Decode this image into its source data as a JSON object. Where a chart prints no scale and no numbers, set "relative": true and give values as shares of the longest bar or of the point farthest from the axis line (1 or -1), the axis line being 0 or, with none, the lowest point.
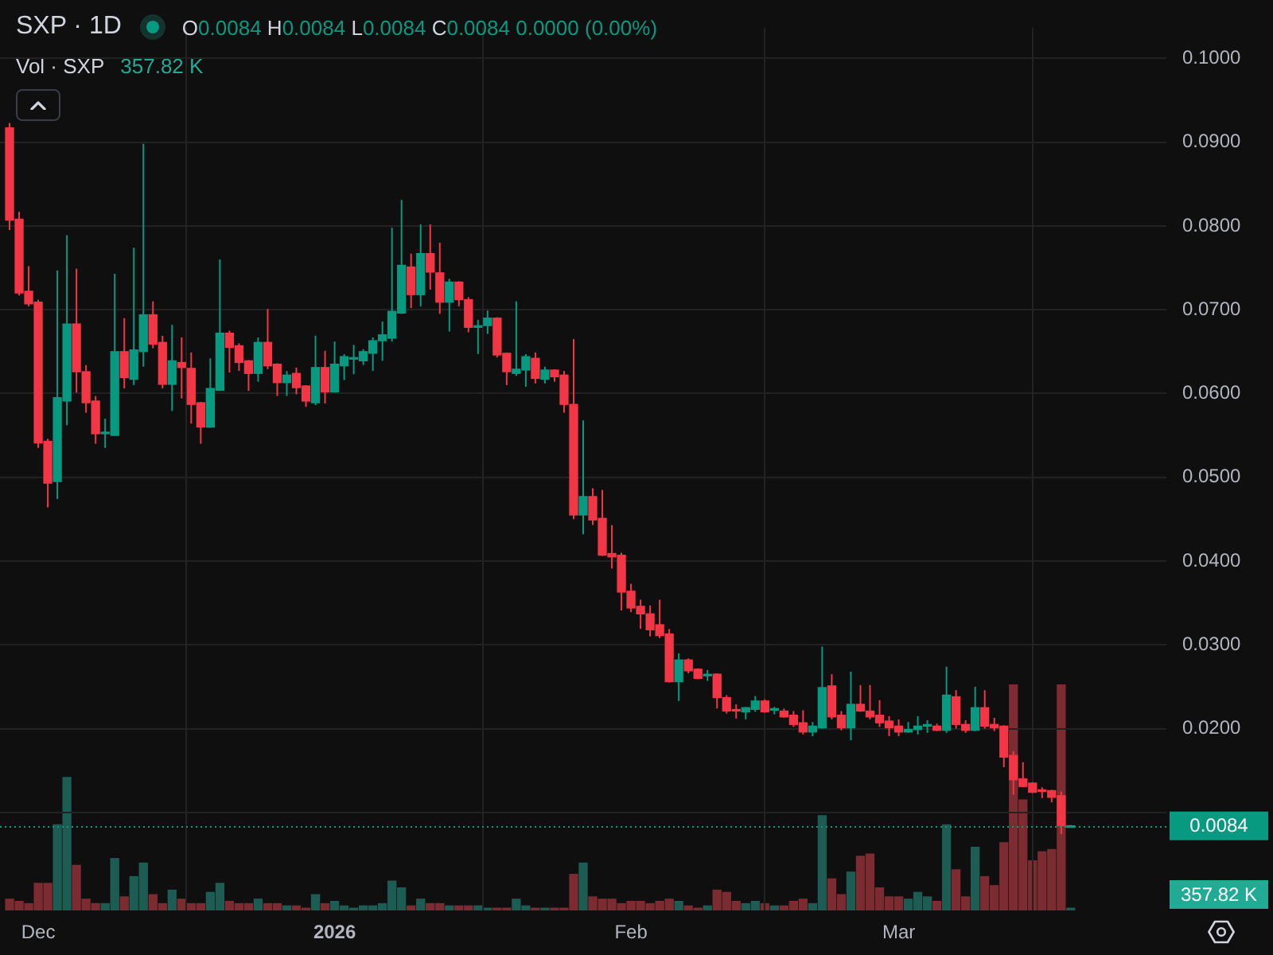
{
  "chart_data": [
    {
      "type": "candlestick",
      "title": "SXP · 1D",
      "x": [
        "2025-11-28",
        "2025-11-29",
        "2025-11-30",
        "2025-12-01",
        "2025-12-02",
        "2025-12-03",
        "2025-12-04",
        "2025-12-05",
        "2025-12-06",
        "2025-12-07",
        "2025-12-08",
        "2025-12-09",
        "2025-12-10",
        "2025-12-11",
        "2025-12-12",
        "2025-12-13",
        "2025-12-14",
        "2025-12-15",
        "2025-12-16",
        "2025-12-17",
        "2025-12-18",
        "2025-12-19",
        "2025-12-20",
        "2025-12-21",
        "2025-12-22",
        "2025-12-23",
        "2025-12-24",
        "2025-12-25",
        "2025-12-26",
        "2025-12-27",
        "2025-12-28",
        "2025-12-29",
        "2025-12-30",
        "2025-12-31",
        "2026-01-01",
        "2026-01-02",
        "2026-01-03",
        "2026-01-04",
        "2026-01-05",
        "2026-01-06",
        "2026-01-07",
        "2026-01-08",
        "2026-01-09",
        "2026-01-10",
        "2026-01-11",
        "2026-01-12",
        "2026-01-13",
        "2026-01-14",
        "2026-01-15",
        "2026-01-16",
        "2026-01-17",
        "2026-01-18",
        "2026-01-19",
        "2026-01-20",
        "2026-01-21",
        "2026-01-22",
        "2026-01-23",
        "2026-01-24",
        "2026-01-25",
        "2026-01-26",
        "2026-01-27",
        "2026-01-28",
        "2026-01-29",
        "2026-01-30",
        "2026-01-31",
        "2026-02-01",
        "2026-02-02",
        "2026-02-03",
        "2026-02-04",
        "2026-02-05",
        "2026-02-06",
        "2026-02-07",
        "2026-02-08",
        "2026-02-09",
        "2026-02-10",
        "2026-02-11",
        "2026-02-12",
        "2026-02-13",
        "2026-02-14",
        "2026-02-15",
        "2026-02-16",
        "2026-02-17",
        "2026-02-18",
        "2026-02-19",
        "2026-02-20",
        "2026-02-21",
        "2026-02-22",
        "2026-02-23",
        "2026-02-24",
        "2026-02-25",
        "2026-02-26",
        "2026-02-27",
        "2026-02-28",
        "2026-03-01",
        "2026-03-02",
        "2026-03-03",
        "2026-03-04",
        "2026-03-05",
        "2026-03-06",
        "2026-03-07",
        "2026-03-08",
        "2026-03-09",
        "2026-03-10",
        "2026-03-11",
        "2026-03-12",
        "2026-03-13",
        "2026-03-14",
        "2026-03-15",
        "2026-03-16",
        "2026-03-17",
        "2026-03-18",
        "2026-03-19"
      ],
      "ohlc": [
        [
          0.0917,
          0.0922,
          0.0796,
          0.0807
        ],
        [
          0.0808,
          0.0816,
          0.0718,
          0.072
        ],
        [
          0.0722,
          0.0751,
          0.0705,
          0.0707
        ],
        [
          0.0709,
          0.0711,
          0.0536,
          0.0541
        ],
        [
          0.0543,
          0.0545,
          0.0465,
          0.0493
        ],
        [
          0.0495,
          0.0746,
          0.0475,
          0.0595
        ],
        [
          0.0591,
          0.0788,
          0.0563,
          0.0683
        ],
        [
          0.0683,
          0.0748,
          0.0602,
          0.0626
        ],
        [
          0.0626,
          0.0633,
          0.0578,
          0.0589
        ],
        [
          0.0591,
          0.0596,
          0.0541,
          0.0552
        ],
        [
          0.0552,
          0.0569,
          0.0536,
          0.0553
        ],
        [
          0.055,
          0.0742,
          0.055,
          0.065
        ],
        [
          0.065,
          0.0689,
          0.0607,
          0.0619
        ],
        [
          0.0617,
          0.0773,
          0.0611,
          0.0652
        ],
        [
          0.065,
          0.0897,
          0.0633,
          0.0694
        ],
        [
          0.0694,
          0.0709,
          0.0655,
          0.0659
        ],
        [
          0.0661,
          0.0668,
          0.0607,
          0.0611
        ],
        [
          0.0611,
          0.0681,
          0.058,
          0.0639
        ],
        [
          0.0637,
          0.0666,
          0.0595,
          0.0631
        ],
        [
          0.063,
          0.0648,
          0.0565,
          0.0587
        ],
        [
          0.0589,
          0.0589,
          0.0541,
          0.056
        ],
        [
          0.056,
          0.0641,
          0.056,
          0.0606
        ],
        [
          0.0604,
          0.0759,
          0.0604,
          0.0672
        ],
        [
          0.0672,
          0.0674,
          0.0626,
          0.0655
        ],
        [
          0.0657,
          0.0659,
          0.0628,
          0.0637
        ],
        [
          0.0639,
          0.0639,
          0.0604,
          0.0624
        ],
        [
          0.0624,
          0.0666,
          0.0615,
          0.0661
        ],
        [
          0.0661,
          0.07,
          0.063,
          0.0633
        ],
        [
          0.0635,
          0.0635,
          0.0598,
          0.0613
        ],
        [
          0.0613,
          0.0626,
          0.0598,
          0.0622
        ],
        [
          0.0624,
          0.063,
          0.06,
          0.0607
        ],
        [
          0.0609,
          0.0609,
          0.0585,
          0.0591
        ],
        [
          0.0589,
          0.0668,
          0.0587,
          0.0631
        ],
        [
          0.0631,
          0.065,
          0.0589,
          0.0602
        ],
        [
          0.0602,
          0.0661,
          0.0602,
          0.0635
        ],
        [
          0.0633,
          0.0646,
          0.0617,
          0.0644
        ],
        [
          0.0641,
          0.0657,
          0.0624,
          0.0642
        ],
        [
          0.0639,
          0.0652,
          0.0635,
          0.065
        ],
        [
          0.0648,
          0.0666,
          0.0628,
          0.0663
        ],
        [
          0.0663,
          0.0685,
          0.064,
          0.067
        ],
        [
          0.0666,
          0.0797,
          0.0663,
          0.0698
        ],
        [
          0.0696,
          0.083,
          0.0696,
          0.0753
        ],
        [
          0.0751,
          0.0766,
          0.0703,
          0.0718
        ],
        [
          0.0718,
          0.0801,
          0.0705,
          0.0767
        ],
        [
          0.0767,
          0.0801,
          0.0725,
          0.0745
        ],
        [
          0.0744,
          0.0779,
          0.0696,
          0.0709
        ],
        [
          0.0709,
          0.0736,
          0.0675,
          0.0733
        ],
        [
          0.0733,
          0.0733,
          0.0705,
          0.0712
        ],
        [
          0.0712,
          0.0714,
          0.0674,
          0.0679
        ],
        [
          0.0679,
          0.0687,
          0.0648,
          0.068
        ],
        [
          0.0681,
          0.0698,
          0.0672,
          0.069
        ],
        [
          0.069,
          0.069,
          0.0644,
          0.0646
        ],
        [
          0.0648,
          0.0648,
          0.0611,
          0.0626
        ],
        [
          0.0624,
          0.0709,
          0.0622,
          0.0629
        ],
        [
          0.0628,
          0.0646,
          0.0609,
          0.0644
        ],
        [
          0.0642,
          0.0648,
          0.0613,
          0.0618
        ],
        [
          0.0617,
          0.0631,
          0.0613,
          0.0628
        ],
        [
          0.0628,
          0.0628,
          0.0615,
          0.062
        ],
        [
          0.0622,
          0.0626,
          0.0578,
          0.0587
        ],
        [
          0.0587,
          0.0664,
          0.0451,
          0.0455
        ],
        [
          0.0455,
          0.0567,
          0.0433,
          0.0477
        ],
        [
          0.0477,
          0.0486,
          0.0444,
          0.0449
        ],
        [
          0.0451,
          0.0484,
          0.0407,
          0.0407
        ],
        [
          0.0409,
          0.0442,
          0.0392,
          0.0405
        ],
        [
          0.0407,
          0.0409,
          0.0342,
          0.0363
        ],
        [
          0.0364,
          0.0372,
          0.034,
          0.0344
        ],
        [
          0.0346,
          0.0353,
          0.032,
          0.0337
        ],
        [
          0.0337,
          0.0346,
          0.0311,
          0.0318
        ],
        [
          0.0324,
          0.0353,
          0.0309,
          0.0311
        ],
        [
          0.0313,
          0.0318,
          0.0256,
          0.0256
        ],
        [
          0.0256,
          0.0289,
          0.0234,
          0.0282
        ],
        [
          0.0282,
          0.0283,
          0.0267,
          0.0269
        ],
        [
          0.0271,
          0.0271,
          0.026,
          0.026
        ],
        [
          0.0263,
          0.0269,
          0.0258,
          0.0264
        ],
        [
          0.0265,
          0.0265,
          0.0225,
          0.0237
        ],
        [
          0.0237,
          0.0239,
          0.0219,
          0.0221
        ],
        [
          0.0222,
          0.0228,
          0.0213,
          0.0221
        ],
        [
          0.022,
          0.0225,
          0.0212,
          0.0225
        ],
        [
          0.0223,
          0.0238,
          0.0221,
          0.0233
        ],
        [
          0.0233,
          0.0234,
          0.022,
          0.022
        ],
        [
          0.0222,
          0.0225,
          0.0218,
          0.0223
        ],
        [
          0.0221,
          0.0223,
          0.0214,
          0.0214
        ],
        [
          0.0216,
          0.022,
          0.0203,
          0.0205
        ],
        [
          0.0207,
          0.0221,
          0.0194,
          0.0196
        ],
        [
          0.0196,
          0.0207,
          0.0192,
          0.0203
        ],
        [
          0.0201,
          0.0297,
          0.0201,
          0.0249
        ],
        [
          0.0251,
          0.0264,
          0.0212,
          0.0214
        ],
        [
          0.0216,
          0.022,
          0.0199,
          0.0201
        ],
        [
          0.0201,
          0.0267,
          0.0187,
          0.0229
        ],
        [
          0.0229,
          0.0251,
          0.0221,
          0.0221
        ],
        [
          0.0221,
          0.0251,
          0.0212,
          0.0214
        ],
        [
          0.0216,
          0.0233,
          0.0203,
          0.0207
        ],
        [
          0.0209,
          0.0214,
          0.0192,
          0.0201
        ],
        [
          0.0203,
          0.021,
          0.0192,
          0.0196
        ],
        [
          0.0196,
          0.0207,
          0.0196,
          0.0199
        ],
        [
          0.0199,
          0.0214,
          0.0194,
          0.0203
        ],
        [
          0.0203,
          0.0209,
          0.0196,
          0.0204
        ],
        [
          0.0203,
          0.0205,
          0.0198,
          0.0198
        ],
        [
          0.0198,
          0.0273,
          0.0196,
          0.024
        ],
        [
          0.0238,
          0.0245,
          0.0201,
          0.0205
        ],
        [
          0.0205,
          0.0209,
          0.0196,
          0.0198
        ],
        [
          0.0198,
          0.0249,
          0.0198,
          0.0225
        ],
        [
          0.0225,
          0.0245,
          0.0201,
          0.0203
        ],
        [
          0.0205,
          0.0212,
          0.0198,
          0.0201
        ],
        [
          0.0203,
          0.0203,
          0.0155,
          0.0166
        ],
        [
          0.0168,
          0.0172,
          0.0122,
          0.0139
        ],
        [
          0.014,
          0.0159,
          0.0131,
          0.0131
        ],
        [
          0.0135,
          0.0135,
          0.0124,
          0.0124
        ],
        [
          0.0126,
          0.0129,
          0.0118,
          0.0125
        ],
        [
          0.0126,
          0.0126,
          0.0113,
          0.0118
        ],
        [
          0.012,
          0.0124,
          0.0075,
          0.0084
        ],
        [
          0.0084,
          0.0084,
          0.0084,
          0.0084
        ]
      ],
      "colors": [
        "#f23645",
        "#f23645",
        "#f23645",
        "#f23645",
        "#f23645",
        "#089981",
        "#089981",
        "#f23645",
        "#f23645",
        "#f23645",
        "#089981",
        "#089981",
        "#f23645",
        "#089981",
        "#089981",
        "#f23645",
        "#f23645",
        "#089981",
        "#f23645",
        "#f23645",
        "#f23645",
        "#089981",
        "#089981",
        "#f23645",
        "#f23645",
        "#f23645",
        "#089981",
        "#f23645",
        "#f23645",
        "#089981",
        "#f23645",
        "#f23645",
        "#089981",
        "#f23645",
        "#089981",
        "#089981",
        "#089981",
        "#089981",
        "#089981",
        "#089981",
        "#089981",
        "#089981",
        "#f23645",
        "#089981",
        "#f23645",
        "#f23645",
        "#089981",
        "#f23645",
        "#f23645",
        "#089981",
        "#089981",
        "#f23645",
        "#f23645",
        "#089981",
        "#089981",
        "#f23645",
        "#089981",
        "#f23645",
        "#f23645",
        "#f23645",
        "#089981",
        "#f23645",
        "#f23645",
        "#f23645",
        "#f23645",
        "#f23645",
        "#f23645",
        "#f23645",
        "#f23645",
        "#f23645",
        "#089981",
        "#f23645",
        "#f23645",
        "#089981",
        "#f23645",
        "#f23645",
        "#f23645",
        "#089981",
        "#089981",
        "#f23645",
        "#089981",
        "#f23645",
        "#f23645",
        "#f23645",
        "#089981",
        "#089981",
        "#f23645",
        "#f23645",
        "#089981",
        "#f23645",
        "#f23645",
        "#f23645",
        "#f23645",
        "#f23645",
        "#089981",
        "#089981",
        "#089981",
        "#f23645",
        "#089981",
        "#f23645",
        "#f23645",
        "#089981",
        "#f23645",
        "#f23645",
        "#f23645",
        "#f23645",
        "#f23645",
        "#f23645",
        "#f23645",
        "#f23645",
        "#f23645",
        "#089981"
      ],
      "xlim": [
        "2025-11-27",
        "2026-03-29"
      ],
      "xticks": [
        {
          "value": "2025-12-01",
          "label": "Dec"
        },
        {
          "value": "2026-01-01",
          "label": "2026"
        },
        {
          "value": "2026-02-01",
          "label": "Feb"
        },
        {
          "value": "2026-03-01",
          "label": "Mar"
        }
      ],
      "ylim": [
        -0.0017,
        0.1037
      ],
      "yticks": [
        {
          "value": 0.01,
          "label": null
        },
        {
          "value": 0.02,
          "label": "0.0200"
        },
        {
          "value": 0.03,
          "label": "0.0300"
        },
        {
          "value": 0.04,
          "label": "0.0400"
        },
        {
          "value": 0.05,
          "label": "0.0500"
        },
        {
          "value": 0.06,
          "label": "0.0600"
        },
        {
          "value": 0.07,
          "label": "0.0700"
        },
        {
          "value": 0.08,
          "label": "0.0800"
        },
        {
          "value": 0.09,
          "label": "0.0900"
        },
        {
          "value": 0.1,
          "label": "0.1000"
        }
      ],
      "grid": true,
      "ref_lines": [
        {
          "axis": "y",
          "value": 0.0084,
          "label": "0.0084",
          "color": "#089981",
          "line_style": "dotted"
        }
      ],
      "annotations": [
        "O0.0084 H0.0084 L0.0084 C0.0084 0.0000 (0.00%)"
      ]
    },
    {
      "type": "bar",
      "relative": true,
      "categories": [
        null,
        null,
        null,
        null,
        null,
        null,
        null,
        null,
        null,
        null,
        null,
        null,
        null,
        null,
        null,
        null,
        null,
        null,
        null,
        null,
        null,
        null,
        null,
        null,
        null,
        null,
        null,
        null,
        null,
        null,
        null,
        null,
        null,
        null,
        null,
        null,
        null,
        null,
        null,
        null,
        null,
        null,
        null,
        null,
        null,
        null,
        null,
        null,
        null,
        null,
        null,
        null,
        null,
        null,
        null,
        null,
        null,
        null,
        null,
        null,
        null,
        null,
        null,
        null,
        null,
        null,
        null,
        null,
        null,
        null,
        null,
        null,
        null,
        null,
        null,
        null,
        null,
        null,
        null,
        null,
        null,
        null,
        null,
        null,
        null,
        null,
        null,
        null,
        null,
        null,
        null,
        null,
        null,
        null,
        null,
        null,
        null,
        null,
        null,
        null,
        null,
        null,
        null,
        null,
        null,
        null,
        null,
        null,
        null,
        null,
        null,
        null
      ],
      "values": [
        0.05,
        0.04,
        0.03,
        0.12,
        0.12,
        0.38,
        0.59,
        0.2,
        0.05,
        0.03,
        0.03,
        0.23,
        0.06,
        0.15,
        0.21,
        0.07,
        0.03,
        0.09,
        0.05,
        0.03,
        0.03,
        0.08,
        0.12,
        0.04,
        0.03,
        0.03,
        0.05,
        0.03,
        0.03,
        0.02,
        0.02,
        0.01,
        0.07,
        0.03,
        0.04,
        0.02,
        0.01,
        0.02,
        0.02,
        0.03,
        0.13,
        0.1,
        0.02,
        0.05,
        0.03,
        0.03,
        0.02,
        0.02,
        0.02,
        0.02,
        0.01,
        0.01,
        0.01,
        0.05,
        0.02,
        0.01,
        0.01,
        0.01,
        0.01,
        0.16,
        0.21,
        0.06,
        0.05,
        0.05,
        0.03,
        0.04,
        0.04,
        0.03,
        0.04,
        0.05,
        0.04,
        0.02,
        0.01,
        0.02,
        0.09,
        0.08,
        0.04,
        0.03,
        0.04,
        0.03,
        0.02,
        0.02,
        0.04,
        0.05,
        0.03,
        0.42,
        0.14,
        0.07,
        0.17,
        0.24,
        0.25,
        0.1,
        0.06,
        0.06,
        0.05,
        0.08,
        0.06,
        0.04,
        0.38,
        0.18,
        0.06,
        0.28,
        0.15,
        0.11,
        0.3,
        1,
        0.49,
        0.22,
        0.26,
        0.27,
        1,
        0.01
      ],
      "colors": [
        "#7c2c30",
        "#7c2c30",
        "#7c2c30",
        "#7c2c30",
        "#7c2c30",
        "#1d5c52",
        "#1d5c52",
        "#7c2c30",
        "#7c2c30",
        "#7c2c30",
        "#1d5c52",
        "#1d5c52",
        "#7c2c30",
        "#1d5c52",
        "#1d5c52",
        "#7c2c30",
        "#7c2c30",
        "#1d5c52",
        "#7c2c30",
        "#7c2c30",
        "#7c2c30",
        "#1d5c52",
        "#1d5c52",
        "#7c2c30",
        "#7c2c30",
        "#7c2c30",
        "#1d5c52",
        "#7c2c30",
        "#7c2c30",
        "#1d5c52",
        "#7c2c30",
        "#7c2c30",
        "#1d5c52",
        "#7c2c30",
        "#1d5c52",
        "#1d5c52",
        "#1d5c52",
        "#1d5c52",
        "#1d5c52",
        "#1d5c52",
        "#1d5c52",
        "#1d5c52",
        "#7c2c30",
        "#1d5c52",
        "#7c2c30",
        "#7c2c30",
        "#1d5c52",
        "#7c2c30",
        "#7c2c30",
        "#1d5c52",
        "#1d5c52",
        "#7c2c30",
        "#7c2c30",
        "#1d5c52",
        "#1d5c52",
        "#7c2c30",
        "#1d5c52",
        "#7c2c30",
        "#7c2c30",
        "#7c2c30",
        "#1d5c52",
        "#7c2c30",
        "#7c2c30",
        "#7c2c30",
        "#7c2c30",
        "#7c2c30",
        "#7c2c30",
        "#7c2c30",
        "#7c2c30",
        "#7c2c30",
        "#1d5c52",
        "#7c2c30",
        "#7c2c30",
        "#1d5c52",
        "#7c2c30",
        "#7c2c30",
        "#7c2c30",
        "#1d5c52",
        "#1d5c52",
        "#7c2c30",
        "#1d5c52",
        "#7c2c30",
        "#7c2c30",
        "#7c2c30",
        "#1d5c52",
        "#1d5c52",
        "#7c2c30",
        "#7c2c30",
        "#1d5c52",
        "#7c2c30",
        "#7c2c30",
        "#7c2c30",
        "#7c2c30",
        "#7c2c30",
        "#1d5c52",
        "#1d5c52",
        "#1d5c52",
        "#7c2c30",
        "#1d5c52",
        "#7c2c30",
        "#7c2c30",
        "#1d5c52",
        "#7c2c30",
        "#7c2c30",
        "#7c2c30",
        "#7c2c30",
        "#7c2c30",
        "#7c2c30",
        "#7c2c30",
        "#7c2c30",
        "#7c2c30",
        "#1d5c52"
      ],
      "annotations": [
        "Vol · SXP",
        "357.82 K",
        "357.82 K"
      ]
    }
  ]
}
